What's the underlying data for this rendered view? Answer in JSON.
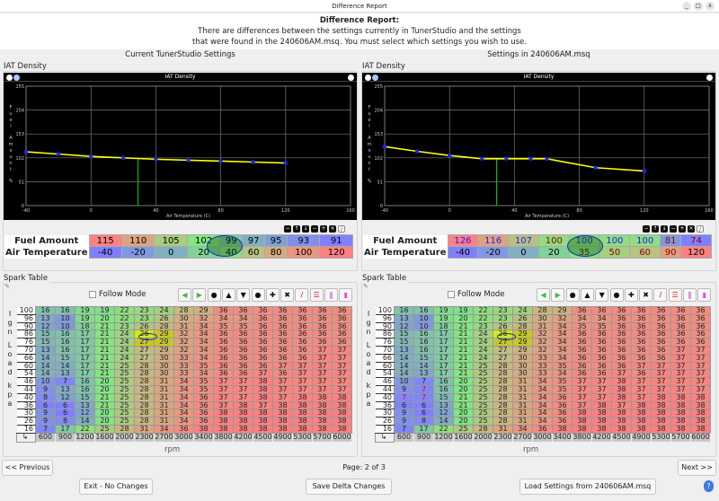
{
  "window": {
    "title": "Difference Report",
    "controls": [
      "_",
      "□",
      "x"
    ]
  },
  "header": {
    "title": "Difference Report:",
    "line1": "There are differences between the settings currently in TunerStudio and the settings",
    "line2": "that were found in the 240606AM.msq. You must select which settings you wish to use."
  },
  "columns": [
    {
      "title": "Current TunerStudio Settings"
    },
    {
      "title": "Settings in 240606AM.msq"
    }
  ],
  "iat": {
    "group_label": "IAT Density",
    "chart_title": "IAT Density",
    "xlabel": "Air Temperature (C)",
    "ylabel": "Fuel Amount %",
    "yticks": [
      0,
      51,
      102,
      153,
      204,
      255
    ],
    "xticks": [
      -40,
      0,
      40,
      80,
      120,
      160
    ],
    "xlim": [
      -40,
      160
    ],
    "ylim": [
      0,
      255
    ],
    "row_labels": [
      "Fuel Amount",
      "Air Temperature"
    ],
    "line_color": "#ffff00",
    "point_color": "#2020ff",
    "cursor_color": "#00c000",
    "left": {
      "cursor_x": 29,
      "fuel": [
        115,
        110,
        105,
        102,
        99,
        97,
        95,
        93,
        91
      ],
      "temp": [
        -40,
        -20,
        0,
        20,
        40,
        60,
        80,
        100,
        120
      ],
      "fuel_text_colors": [
        "#000",
        "#000",
        "#000",
        "#000",
        "#000",
        "#000",
        "#000",
        "#000",
        "#000"
      ],
      "temp_text_colors": [
        "#000",
        "#000",
        "#000",
        "#000",
        "#000",
        "#000",
        "#000",
        "#000",
        "#000"
      ]
    },
    "right": {
      "cursor_x": 29,
      "fuel": [
        126,
        116,
        107,
        100,
        100,
        100,
        100,
        81,
        74
      ],
      "temp": [
        -40,
        -20,
        0,
        20,
        35,
        50,
        60,
        90,
        120
      ],
      "fuel_text_colors": [
        "#1a1aff",
        "#1a1aff",
        "#1a1aff",
        "#8b0000",
        "#1a1aff",
        "#1a1aff",
        "#1a1aff",
        "#8b0000",
        "#8b0000"
      ],
      "temp_text_colors": [
        "#000",
        "#000",
        "#000",
        "#000",
        "#8b0000",
        "#8b0000",
        "#8b0000",
        "#8b0000",
        "#000"
      ]
    }
  },
  "spark": {
    "group_label": "Spark Table",
    "follow_mode": "Follow Mode",
    "ylabel": "IgnLoadkpa",
    "xlabel": "rpm",
    "rpm": [
      600,
      900,
      1200,
      1600,
      2000,
      2300,
      2700,
      3000,
      3400,
      3800,
      4200,
      4500,
      4900,
      5300,
      5700,
      6000
    ],
    "load": [
      100,
      96,
      90,
      86,
      76,
      70,
      66,
      60,
      54,
      46,
      44,
      40,
      36,
      30,
      26,
      16
    ],
    "toolbar": [
      "arrow-left",
      "arrow-right",
      "minus",
      "up",
      "down",
      "minus",
      "plus",
      "times",
      "pencil",
      "rows",
      "columns",
      "gradient"
    ],
    "left": {
      "values": [
        [
          16,
          16,
          19,
          19,
          22,
          23,
          24,
          28,
          29,
          36,
          36,
          36,
          36,
          36,
          36,
          36
        ],
        [
          13,
          10,
          19,
          20,
          22,
          23,
          26,
          30,
          32,
          34,
          34,
          36,
          36,
          36,
          36,
          36
        ],
        [
          12,
          10,
          18,
          21,
          23,
          26,
          28,
          31,
          34,
          35,
          35,
          36,
          36,
          36,
          36,
          36
        ],
        [
          15,
          16,
          17,
          21,
          24,
          26,
          29,
          32,
          34,
          36,
          36,
          36,
          36,
          36,
          36,
          36
        ],
        [
          15,
          16,
          17,
          21,
          24,
          27,
          29,
          32,
          34,
          36,
          36,
          36,
          36,
          36,
          36,
          36
        ],
        [
          13,
          16,
          17,
          21,
          24,
          27,
          29,
          32,
          34,
          36,
          36,
          36,
          36,
          36,
          37,
          37
        ],
        [
          14,
          15,
          17,
          21,
          24,
          27,
          30,
          33,
          34,
          36,
          36,
          36,
          36,
          36,
          37,
          37
        ],
        [
          14,
          14,
          17,
          21,
          25,
          28,
          30,
          33,
          35,
          36,
          36,
          36,
          37,
          37,
          37,
          37
        ],
        [
          14,
          13,
          17,
          21,
          25,
          28,
          30,
          33,
          34,
          36,
          36,
          37,
          36,
          37,
          37,
          37
        ],
        [
          10,
          7,
          16,
          20,
          25,
          28,
          31,
          34,
          35,
          37,
          37,
          38,
          37,
          37,
          37,
          37
        ],
        [
          9,
          13,
          16,
          20,
          25,
          28,
          31,
          34,
          35,
          37,
          37,
          38,
          37,
          37,
          37,
          37
        ],
        [
          8,
          12,
          15,
          21,
          25,
          28,
          31,
          34,
          36,
          37,
          37,
          38,
          37,
          38,
          38,
          38
        ],
        [
          6,
          6,
          13,
          21,
          25,
          28,
          31,
          34,
          36,
          37,
          38,
          37,
          38,
          38,
          38,
          38
        ],
        [
          9,
          6,
          12,
          20,
          25,
          28,
          31,
          34,
          36,
          38,
          38,
          38,
          38,
          38,
          38,
          38
        ],
        [
          9,
          8,
          14,
          20,
          25,
          28,
          31,
          34,
          36,
          38,
          38,
          38,
          38,
          38,
          38,
          38
        ],
        [
          7,
          17,
          22,
          25,
          28,
          31,
          34,
          36,
          38,
          38,
          38,
          38,
          38,
          38,
          38,
          38
        ]
      ]
    },
    "right": {
      "values": [
        [
          16,
          16,
          19,
          19,
          22,
          23,
          24,
          28,
          29,
          36,
          36,
          36,
          36,
          36,
          36,
          36
        ],
        [
          13,
          10,
          19,
          20,
          22,
          23,
          26,
          30,
          32,
          34,
          34,
          36,
          36,
          36,
          36,
          36
        ],
        [
          12,
          10,
          18,
          21,
          23,
          26,
          28,
          31,
          34,
          35,
          35,
          36,
          36,
          36,
          36,
          36
        ],
        [
          15,
          16,
          17,
          21,
          24,
          26,
          29,
          32,
          34,
          36,
          36,
          36,
          36,
          36,
          36,
          36
        ],
        [
          15,
          16,
          17,
          21,
          24,
          27,
          29,
          32,
          34,
          36,
          36,
          36,
          36,
          36,
          36,
          36
        ],
        [
          13,
          16,
          17,
          21,
          24,
          27,
          29,
          32,
          34,
          36,
          36,
          36,
          36,
          36,
          37,
          37
        ],
        [
          14,
          15,
          17,
          21,
          24,
          27,
          30,
          33,
          34,
          36,
          36,
          36,
          36,
          36,
          37,
          37
        ],
        [
          14,
          14,
          17,
          21,
          25,
          28,
          30,
          33,
          35,
          36,
          36,
          36,
          37,
          37,
          37,
          37
        ],
        [
          14,
          13,
          17,
          21,
          25,
          28,
          30,
          33,
          34,
          36,
          36,
          37,
          36,
          37,
          37,
          37
        ],
        [
          10,
          7,
          16,
          20,
          25,
          28,
          31,
          34,
          35,
          37,
          37,
          38,
          37,
          37,
          37,
          37
        ],
        [
          9,
          7,
          16,
          20,
          25,
          28,
          31,
          34,
          35,
          37,
          37,
          38,
          37,
          37,
          37,
          37
        ],
        [
          7,
          7,
          15,
          21,
          25,
          28,
          31,
          34,
          36,
          37,
          37,
          38,
          37,
          38,
          38,
          38
        ],
        [
          6,
          6,
          13,
          21,
          25,
          28,
          31,
          34,
          36,
          37,
          38,
          37,
          38,
          38,
          38,
          38
        ],
        [
          9,
          6,
          12,
          20,
          25,
          28,
          31,
          34,
          36,
          38,
          38,
          38,
          38,
          38,
          38,
          38
        ],
        [
          9,
          8,
          14,
          20,
          25,
          28,
          31,
          34,
          36,
          38,
          38,
          38,
          38,
          38,
          38,
          38
        ],
        [
          7,
          17,
          22,
          25,
          28,
          31,
          34,
          36,
          38,
          38,
          38,
          38,
          38,
          38,
          38,
          38
        ]
      ]
    },
    "diff_text_color": "#d01030"
  },
  "footer": {
    "previous": "<< Previous",
    "page": "Page: 2 of 3",
    "next": "Next >>",
    "exit": "Exit - No Changes",
    "save": "Save Delta Changes",
    "load": "Load Settings from 240606AM.msq",
    "help": "?"
  }
}
